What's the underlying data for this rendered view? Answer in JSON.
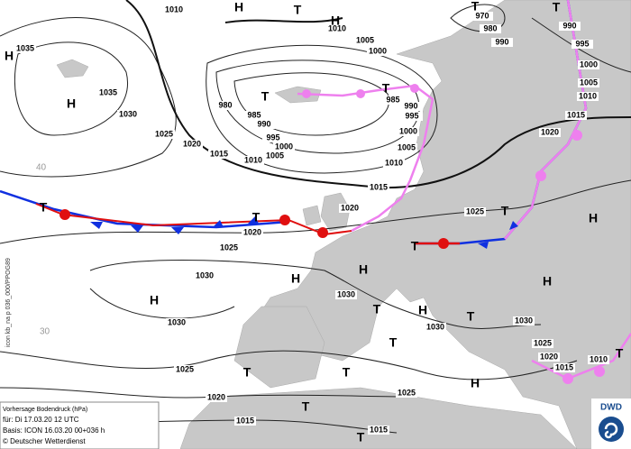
{
  "product_code": "icon kb_na p 036_000/PPOG89",
  "latitude_labels": [
    "40",
    "30"
  ],
  "info_box": {
    "title": "Vorhersage Bodendruck (hPa)",
    "valid": "für:  Di 17.03.20  12 UTC",
    "basis": "Basis: ICON  16.03.20 00+036 h",
    "copyright": "© Deutscher Wetterdienst"
  },
  "logo": "DWD",
  "isobar_labels": [
    "1010",
    "1035",
    "1035",
    "1030",
    "1025",
    "1020",
    "1015",
    "1010",
    "1005",
    "1000",
    "995",
    "990",
    "985",
    "980",
    "985",
    "990",
    "995",
    "1000",
    "1005",
    "1010",
    "1015",
    "1020",
    "1020",
    "1025",
    "1030",
    "1030",
    "1030",
    "1030",
    "1025",
    "1020",
    "1025",
    "1015",
    "1015",
    "1010",
    "1005",
    "1000",
    "970",
    "980",
    "990",
    "990",
    "995",
    "1000",
    "1005",
    "1010",
    "1015",
    "1020",
    "1025",
    "1030",
    "1025",
    "1020",
    "1015",
    "1010"
  ],
  "pressure_centers": [
    "H",
    "T",
    "H",
    "T",
    "T",
    "H",
    "H",
    "T",
    "T",
    "T",
    "T",
    "T",
    "H",
    "T",
    "H",
    "H",
    "H",
    "H",
    "T",
    "H",
    "T",
    "T",
    "H",
    "T",
    "T",
    "T",
    "T",
    "T"
  ]
}
